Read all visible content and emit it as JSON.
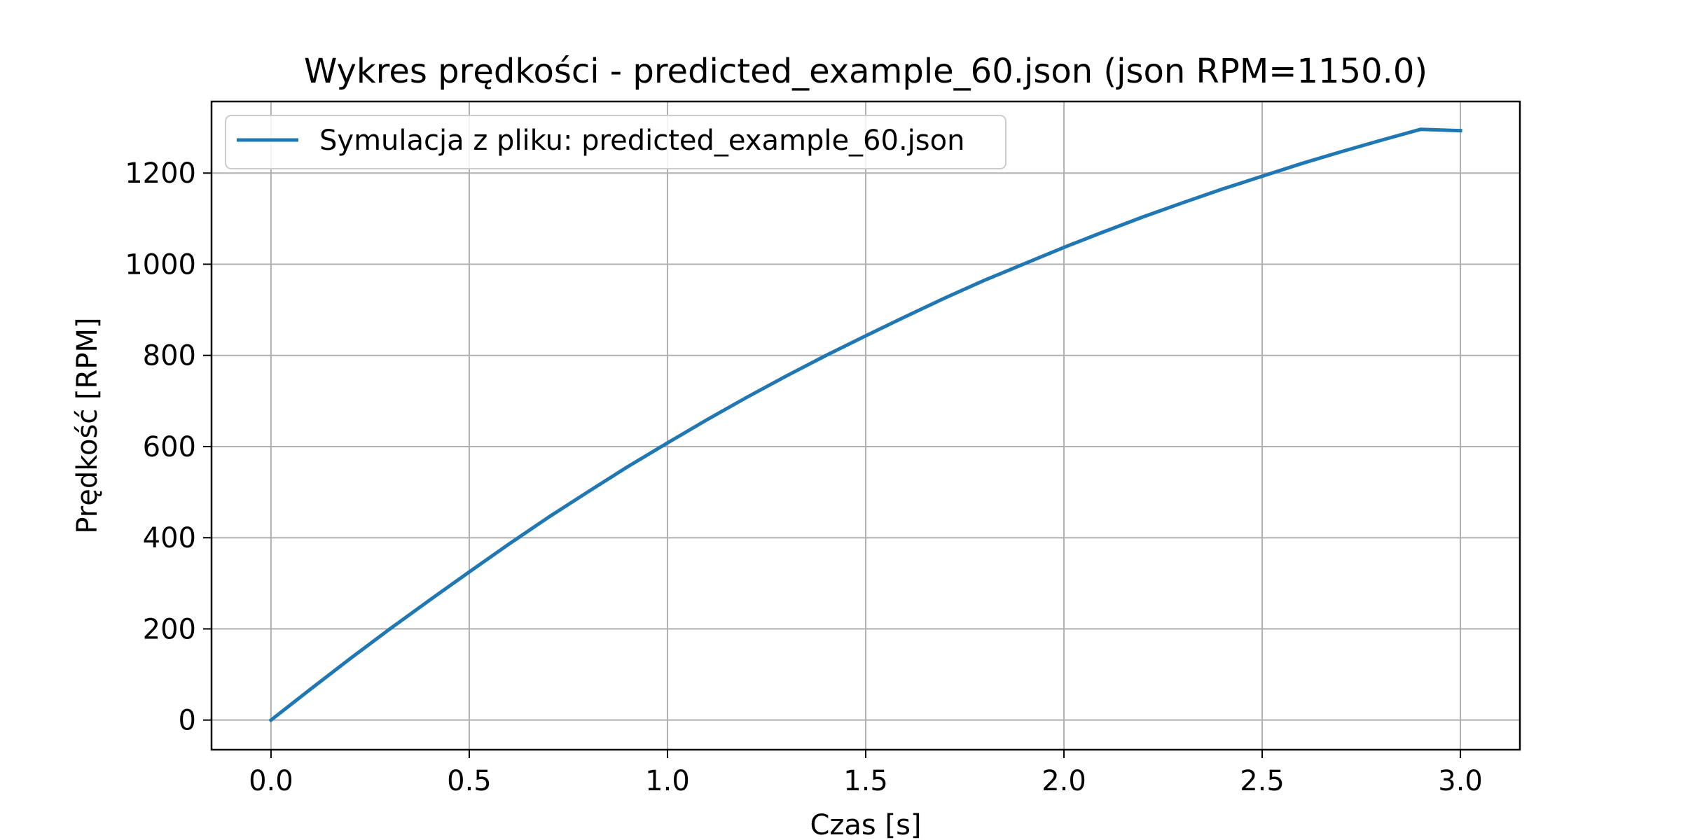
{
  "chart_data": {
    "type": "line",
    "title": "Wykres prędkości - predicted_example_60.json (json RPM=1150.0)",
    "xlabel": "Czas [s]",
    "ylabel": "Prędkość [RPM]",
    "xlim": [
      -0.15,
      3.15
    ],
    "ylim": [
      -65,
      1357
    ],
    "xticks": [
      0.0,
      0.5,
      1.0,
      1.5,
      2.0,
      2.5,
      3.0
    ],
    "xtick_labels": [
      "0.0",
      "0.5",
      "1.0",
      "1.5",
      "2.0",
      "2.5",
      "3.0"
    ],
    "yticks": [
      0,
      200,
      400,
      600,
      800,
      1000,
      1200
    ],
    "ytick_labels": [
      "0",
      "200",
      "400",
      "600",
      "800",
      "1000",
      "1200"
    ],
    "grid": true,
    "legend_position": "upper-left",
    "series": [
      {
        "name": "Symulacja z pliku: predicted_example_60.json",
        "color": "#1f77b4",
        "x": [
          0.0,
          0.1,
          0.2,
          0.3,
          0.4,
          0.5,
          0.6,
          0.7,
          0.8,
          0.9,
          1.0,
          1.1,
          1.2,
          1.3,
          1.4,
          1.5,
          1.6,
          1.7,
          1.8,
          1.9,
          2.0,
          2.1,
          2.2,
          2.3,
          2.4,
          2.5,
          2.6,
          2.7,
          2.8,
          2.9,
          3.0
        ],
        "y": [
          0,
          68,
          135,
          200,
          263,
          325,
          386,
          445,
          501,
          556,
          608,
          659,
          708,
          755,
          800,
          843,
          885,
          926,
          965,
          1001,
          1037,
          1071,
          1104,
          1135,
          1165,
          1193,
          1221,
          1247,
          1272,
          1296,
          1293
        ]
      }
    ]
  }
}
